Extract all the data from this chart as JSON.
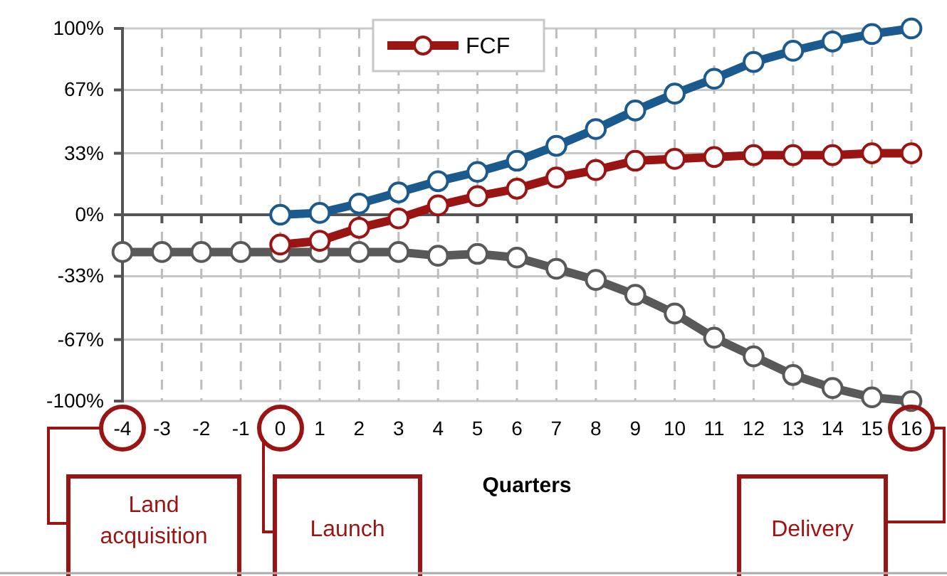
{
  "chart_data": {
    "type": "line",
    "xlabel": "Quarters",
    "x": [
      -4,
      -3,
      -2,
      -1,
      0,
      1,
      2,
      3,
      4,
      5,
      6,
      7,
      8,
      9,
      10,
      11,
      12,
      13,
      14,
      15,
      16
    ],
    "series": [
      {
        "color": "#1b5a8e",
        "values": [
          null,
          null,
          null,
          null,
          0,
          1,
          6,
          12,
          18,
          23,
          29,
          37,
          46,
          56,
          65,
          73,
          82,
          88,
          93,
          97,
          100
        ]
      },
      {
        "name": "FCF",
        "color": "#9b1414",
        "values": [
          null,
          null,
          null,
          null,
          -16,
          -14,
          -7,
          -2,
          5,
          10,
          14,
          20,
          24,
          29,
          30,
          31,
          32,
          32,
          32,
          33,
          33
        ]
      },
      {
        "color": "#595959",
        "values": [
          -20,
          -20,
          -20,
          -20,
          -20,
          -20,
          -20,
          -20,
          -22,
          -21,
          -23,
          -29,
          -35,
          -43,
          -53,
          -66,
          -76,
          -86,
          -93,
          -98,
          -100
        ]
      }
    ],
    "xlim": [
      -4,
      16
    ],
    "xticks": [
      -4,
      -3,
      -2,
      -1,
      0,
      1,
      2,
      3,
      4,
      5,
      6,
      7,
      8,
      9,
      10,
      11,
      12,
      13,
      14,
      15,
      16
    ],
    "ylim": [
      -100,
      100
    ],
    "yticks": [
      {
        "value": -100,
        "label": "-100%"
      },
      {
        "value": -67,
        "label": "-67%"
      },
      {
        "value": -33,
        "label": "-33%"
      },
      {
        "value": 0,
        "label": "0%"
      },
      {
        "value": 33,
        "label": "33%"
      },
      {
        "value": 67,
        "label": "67%"
      },
      {
        "value": 100,
        "label": "100%"
      }
    ],
    "grid": true,
    "legend": "top",
    "marker": "circle",
    "line_style": "solid",
    "annotations": [
      "Land acquisition",
      "Launch",
      "Delivery"
    ]
  }
}
